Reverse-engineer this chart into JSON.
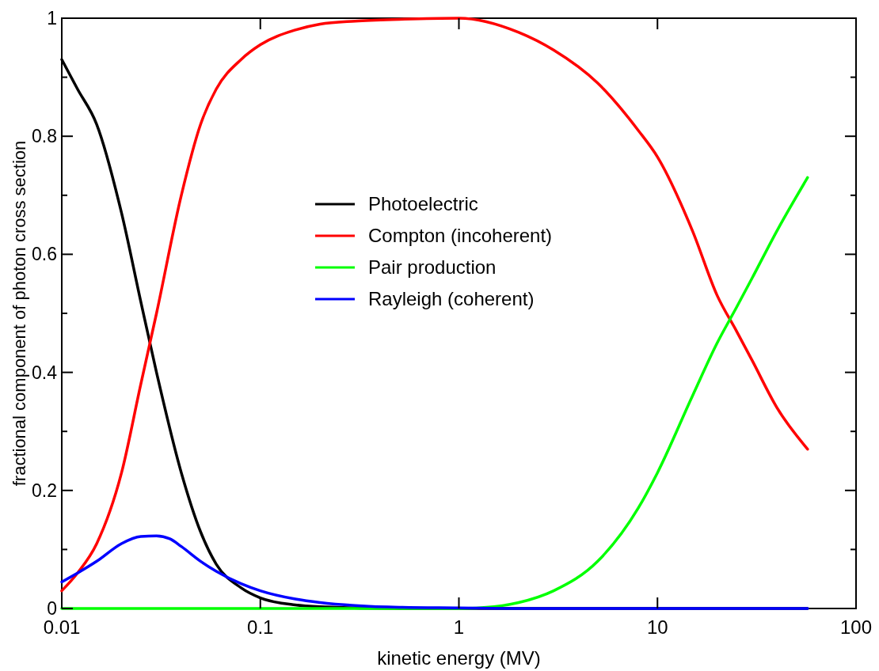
{
  "chart_data": {
    "type": "line",
    "xlabel": "kinetic energy (MV)",
    "ylabel": "fractional component of photon cross section",
    "log": "x",
    "xlim": [
      0.01,
      100
    ],
    "xticks": [
      0.01,
      0.1,
      1,
      10,
      100
    ],
    "ylim": [
      0,
      1
    ],
    "yticks": [
      0,
      {
        "value": 0.1,
        "label": null
      },
      0.2,
      {
        "value": 0.3,
        "label": null
      },
      0.4,
      {
        "value": 0.5,
        "label": null
      },
      0.6,
      {
        "value": 0.7,
        "label": null
      },
      0.8,
      {
        "value": 0.9,
        "label": null
      },
      1
    ],
    "grid": false,
    "legend": "center",
    "line_style": "solid",
    "marker": "none",
    "series": [
      {
        "name": "Photoelectric",
        "color": "#000000",
        "x": [
          0.01,
          0.012,
          0.015,
          0.02,
          0.025,
          0.03,
          0.04,
          0.05,
          0.06,
          0.08,
          0.1,
          0.15,
          0.2,
          0.3,
          0.5,
          1,
          3,
          10,
          57
        ],
        "values": [
          0.93,
          0.88,
          0.82,
          0.67,
          0.52,
          0.4,
          0.23,
          0.13,
          0.075,
          0.035,
          0.018,
          0.006,
          0.003,
          null,
          0,
          0,
          0,
          0,
          0
        ]
      },
      {
        "name": "Compton (incoherent)",
        "color": "#ff0000",
        "x": [
          0.01,
          0.012,
          0.015,
          0.02,
          0.025,
          0.03,
          0.04,
          0.05,
          0.06,
          0.08,
          0.1,
          0.15,
          0.2,
          0.3,
          0.5,
          1,
          2,
          3,
          5,
          8,
          10,
          15,
          20,
          25,
          30,
          40,
          57
        ],
        "values": [
          0.03,
          0.06,
          0.11,
          0.23,
          0.38,
          0.5,
          0.7,
          0.82,
          0.88,
          0.93,
          0.955,
          0.98,
          0.99,
          0.995,
          0.998,
          1,
          0.976,
          0.946,
          0.89,
          0.81,
          0.765,
          0.64,
          0.53,
          0.47,
          0.42,
          0.34,
          0.27
        ]
      },
      {
        "name": "Pair production",
        "color": "#00ff00",
        "x": [
          0.01,
          0.1,
          1,
          1.5,
          2,
          3,
          5,
          8,
          10,
          15,
          20,
          25,
          30,
          40,
          57
        ],
        "values": [
          0,
          0,
          0,
          0.003,
          0.01,
          0.03,
          0.08,
          0.17,
          0.23,
          0.36,
          0.45,
          0.51,
          0.56,
          0.64,
          0.73
        ]
      },
      {
        "name": "Rayleigh (coherent)",
        "color": "#0000ff",
        "x": [
          0.01,
          0.012,
          0.015,
          0.02,
          0.025,
          0.03,
          0.035,
          0.04,
          0.05,
          0.06,
          0.08,
          0.1,
          0.15,
          0.2,
          0.3,
          0.5,
          1,
          2,
          10,
          57
        ],
        "values": [
          0.045,
          0.06,
          0.08,
          0.11,
          0.122,
          0.123,
          0.118,
          0.105,
          0.08,
          0.063,
          0.042,
          0.03,
          0.016,
          0.01,
          0.005,
          0.002,
          0.001,
          0,
          0,
          0
        ]
      }
    ]
  }
}
